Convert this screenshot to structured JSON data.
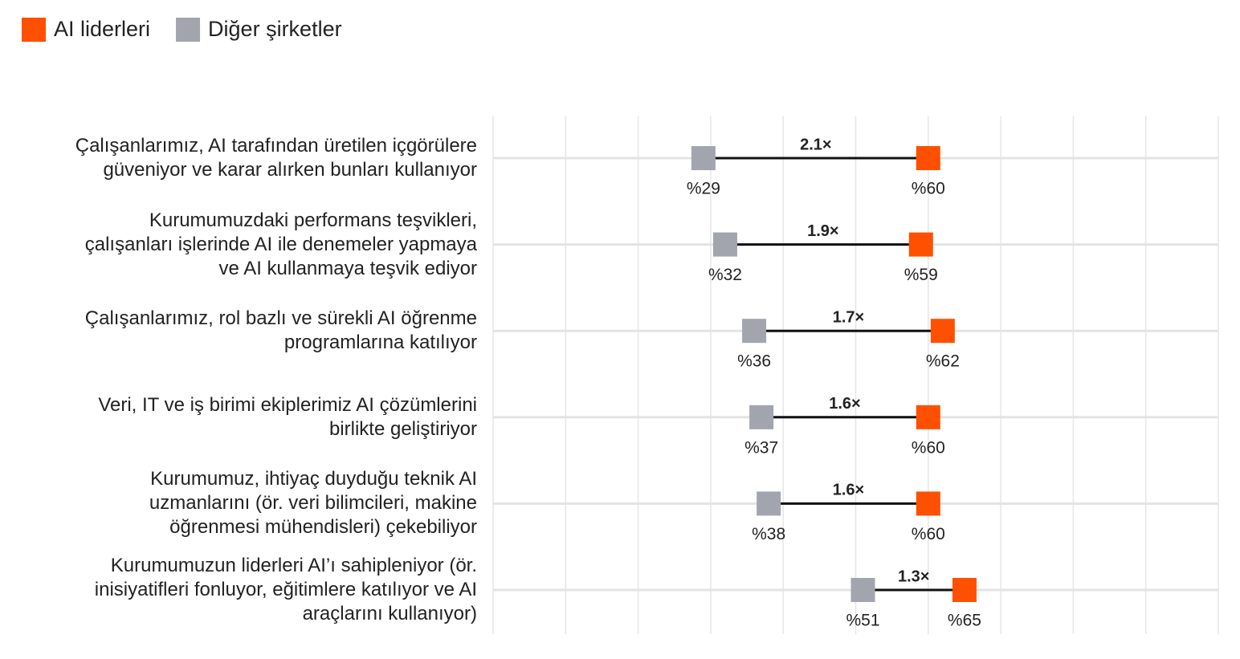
{
  "chart_data": {
    "type": "dumbbell",
    "categories": [
      "Çalışanlarımız, AI tarafından üretilen içgörülere\ngüveniyor ve karar alırken bunları kullanıyor",
      "Kurumumuzdaki performans teşvikleri,\nçalışanları işlerinde AI ile denemeler yapmaya\nve AI kullanmaya teşvik ediyor",
      "Çalışanlarımız, rol bazlı ve sürekli AI öğrenme\nprogramlarına katılıyor",
      "Veri, IT ve iş birimi ekiplerimiz AI çözümlerini\nbirlikte geliştiriyor",
      "Kurumumuz, ihtiyaç duyduğu teknik AI\nuzmanlarını (ör. veri bilimcileri, makine\nöğrenmesi mühendisleri) çekebiliyor",
      "Kurumumuzun liderleri AI’ı sahipleniyor (ör.\ninisiyatifleri fonluyor, eğitimlere katılıyor ve AI\naraçlarını kullanıyor)"
    ],
    "series": [
      {
        "name": "AI liderleri",
        "color": "#fe5000",
        "values": [
          60,
          59,
          62,
          60,
          60,
          65
        ],
        "value_labels": [
          "%60",
          "%59",
          "%62",
          "%60",
          "%60",
          "%65"
        ]
      },
      {
        "name": "Diğer şirketler",
        "color": "#a2a5ae",
        "values": [
          29,
          32,
          36,
          37,
          38,
          51
        ],
        "value_labels": [
          "%29",
          "%32",
          "%36",
          "%37",
          "%38",
          "%51"
        ]
      }
    ],
    "annotations": [
      "2.1×",
      "1.9×",
      "1.7×",
      "1.6×",
      "1.6×",
      "1.3×"
    ],
    "xlim": [
      0,
      100
    ],
    "xticks": [
      0,
      10,
      20,
      30,
      40,
      50,
      60,
      70,
      80,
      90,
      100
    ],
    "grid": true
  }
}
